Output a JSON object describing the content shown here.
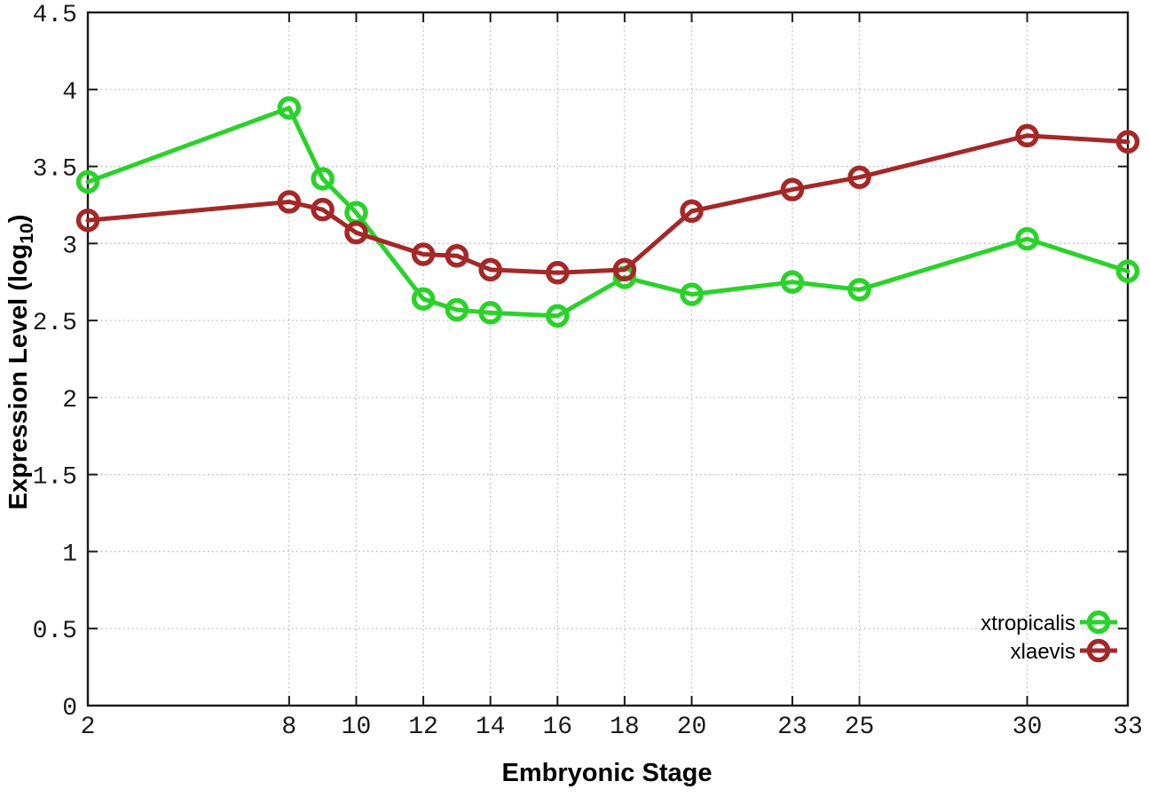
{
  "chart_data": {
    "type": "line",
    "title": "",
    "xlabel": "Embryonic Stage",
    "ylabel_pre": "Expression Level (log",
    "ylabel_sub": "10",
    "ylabel_post": ")",
    "xlim": [
      2,
      33
    ],
    "ylim": [
      0,
      4.5
    ],
    "grid": true,
    "grid_color": "#b8b8b8",
    "axis_color": "#1a1a1a",
    "legend_position": "bottom-right",
    "marker": "open-circle",
    "x_tick_values": [
      2,
      8,
      10,
      12,
      14,
      16,
      18,
      20,
      23,
      25,
      30,
      33
    ],
    "x_tick_labels": [
      "2",
      "8",
      "10",
      "12",
      "14",
      "16",
      "18",
      "20",
      "23",
      "25",
      "30",
      "33"
    ],
    "y_tick_values": [
      0,
      0.5,
      1,
      1.5,
      2,
      2.5,
      3,
      3.5,
      4,
      4.5
    ],
    "y_tick_labels": [
      "0",
      "0.5",
      "1",
      "1.5",
      "2",
      "2.5",
      "3",
      "3.5",
      "4",
      "4.5"
    ],
    "x": [
      2,
      8,
      9,
      10,
      12,
      13,
      14,
      16,
      18,
      20,
      23,
      25,
      30,
      33
    ],
    "series": [
      {
        "name": "xtropicalis",
        "color": "#2ad22a",
        "values": [
          3.4,
          3.88,
          3.42,
          3.2,
          2.64,
          2.57,
          2.55,
          2.53,
          2.78,
          2.67,
          2.75,
          2.7,
          3.03,
          2.82
        ]
      },
      {
        "name": "xlaevis",
        "color": "#a42828",
        "values": [
          3.15,
          3.27,
          3.22,
          3.07,
          2.93,
          2.92,
          2.83,
          2.81,
          2.83,
          3.21,
          3.35,
          3.43,
          3.7,
          3.66
        ]
      }
    ]
  }
}
